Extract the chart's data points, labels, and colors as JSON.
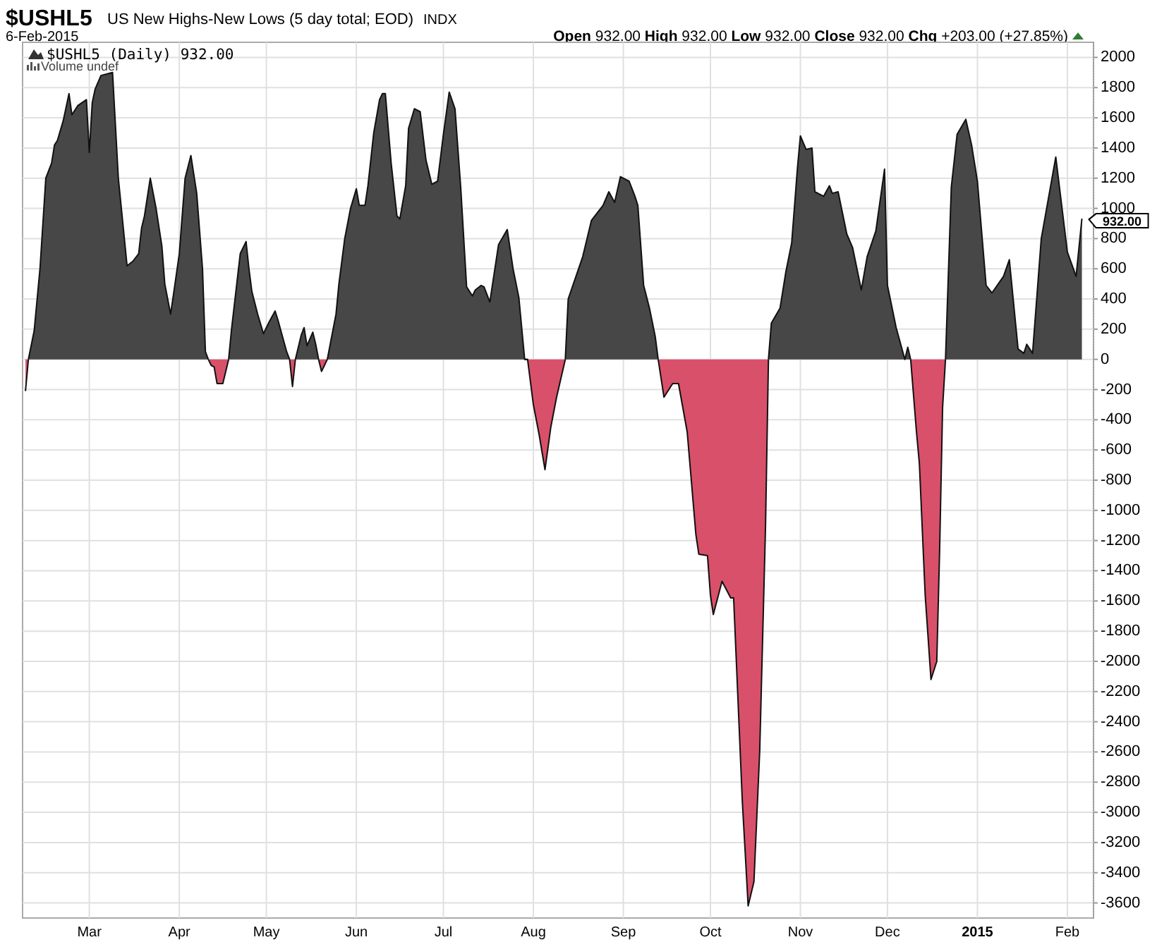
{
  "chart_data": {
    "type": "area",
    "title": "$USHL5",
    "subtitle": "US New Highs-New Lows (5 day total; EOD)",
    "annotations": [
      "INDX",
      "6-Feb-2015",
      "Open 932.00 High 932.00 Low 932.00 Close 932.00 Chg +203.00 (+27.85%)",
      "$USHL5 (Daily) 932.00",
      "Volume undef",
      {
        "text": "932.00",
        "x": "2015-02-06",
        "y": 932
      }
    ],
    "x": [
      "2014-02-07",
      "2014-02-08",
      "2014-02-10",
      "2014-02-12",
      "2014-02-13",
      "2014-02-14",
      "2014-02-16",
      "2014-02-17",
      "2014-02-18",
      "2014-02-20",
      "2014-02-22",
      "2014-02-23",
      "2014-02-25",
      "2014-02-28",
      "2014-03-01",
      "2014-03-02",
      "2014-03-03",
      "2014-03-05",
      "2014-03-09",
      "2014-03-11",
      "2014-03-14",
      "2014-03-16",
      "2014-03-18",
      "2014-03-19",
      "2014-03-20",
      "2014-03-22",
      "2014-03-24",
      "2014-03-26",
      "2014-03-27",
      "2014-03-29",
      "2014-03-30",
      "2014-04-01",
      "2014-04-03",
      "2014-04-05",
      "2014-04-07",
      "2014-04-09",
      "2014-04-10",
      "2014-04-11",
      "2014-04-12",
      "2014-04-13",
      "2014-04-14",
      "2014-04-16",
      "2014-04-18",
      "2014-04-19",
      "2014-04-22",
      "2014-04-24",
      "2014-04-25",
      "2014-04-26",
      "2014-04-28",
      "2014-04-30",
      "2014-05-02",
      "2014-05-04",
      "2014-05-05",
      "2014-05-07",
      "2014-05-08",
      "2014-05-09",
      "2014-05-10",
      "2014-05-11",
      "2014-05-13",
      "2014-05-14",
      "2014-05-15",
      "2014-05-17",
      "2014-05-18",
      "2014-05-19",
      "2014-05-20",
      "2014-05-21",
      "2014-05-22",
      "2014-05-23",
      "2014-05-25",
      "2014-05-26",
      "2014-05-28",
      "2014-05-30",
      "2014-06-01",
      "2014-06-02",
      "2014-06-04",
      "2014-06-05",
      "2014-06-07",
      "2014-06-09",
      "2014-06-10",
      "2014-06-11",
      "2014-06-13",
      "2014-06-15",
      "2014-06-16",
      "2014-06-18",
      "2014-06-19",
      "2014-06-21",
      "2014-06-23",
      "2014-06-25",
      "2014-06-27",
      "2014-06-29",
      "2014-07-01",
      "2014-07-03",
      "2014-07-05",
      "2014-07-07",
      "2014-07-09",
      "2014-07-11",
      "2014-07-12",
      "2014-07-14",
      "2014-07-15",
      "2014-07-17",
      "2014-07-20",
      "2014-07-23",
      "2014-07-25",
      "2014-07-27",
      "2014-07-29",
      "2014-07-30",
      "2014-08-01",
      "2014-08-03",
      "2014-08-05",
      "2014-08-07",
      "2014-08-09",
      "2014-08-12",
      "2014-08-13",
      "2014-08-18",
      "2014-08-21",
      "2014-08-25",
      "2014-08-27",
      "2014-08-29",
      "2014-08-31",
      "2014-09-03",
      "2014-09-05",
      "2014-09-06",
      "2014-09-08",
      "2014-09-10",
      "2014-09-12",
      "2014-09-13",
      "2014-09-15",
      "2014-09-18",
      "2014-09-20",
      "2014-09-23",
      "2014-09-26",
      "2014-09-27",
      "2014-09-30",
      "2014-10-01",
      "2014-10-02",
      "2014-10-05",
      "2014-10-08",
      "2014-10-09",
      "2014-10-12",
      "2014-10-13",
      "2014-10-14",
      "2014-10-16",
      "2014-10-18",
      "2014-10-20",
      "2014-10-21",
      "2014-10-22",
      "2014-10-25",
      "2014-10-27",
      "2014-10-29",
      "2014-10-31",
      "2014-11-01",
      "2014-11-03",
      "2014-11-05",
      "2014-11-06",
      "2014-11-09",
      "2014-11-11",
      "2014-11-12",
      "2014-11-14",
      "2014-11-17",
      "2014-11-19",
      "2014-11-22",
      "2014-11-24",
      "2014-11-27",
      "2014-11-30",
      "2014-12-01",
      "2014-12-04",
      "2014-12-07",
      "2014-12-08",
      "2014-12-09",
      "2014-12-11",
      "2014-12-12",
      "2014-12-14",
      "2014-12-16",
      "2014-12-18",
      "2014-12-19",
      "2014-12-20",
      "2014-12-21",
      "2014-12-23",
      "2014-12-25",
      "2014-12-28",
      "2014-12-30",
      "2015-01-01",
      "2015-01-04",
      "2015-01-06",
      "2015-01-10",
      "2015-01-12",
      "2015-01-15",
      "2015-01-17",
      "2015-01-18",
      "2015-01-20",
      "2015-01-23",
      "2015-01-28",
      "2015-02-01",
      "2015-02-04",
      "2015-02-06"
    ],
    "series": [
      {
        "color": "#474747",
        "values": [
          null,
          0,
          190,
          600,
          900,
          1200,
          1300,
          1420,
          1450,
          1580,
          1760,
          1620,
          1680,
          1720,
          1370,
          1700,
          1790,
          1880,
          1900,
          1200,
          620,
          650,
          700,
          870,
          950,
          1200,
          1000,
          750,
          500,
          300,
          430,
          700,
          1200,
          1350,
          1100,
          600,
          50,
          0,
          null,
          null,
          null,
          null,
          0,
          200,
          700,
          780,
          600,
          450,
          300,
          170,
          250,
          320,
          260,
          120,
          50,
          0,
          null,
          0,
          160,
          210,
          90,
          180,
          100,
          0,
          null,
          null,
          0,
          100,
          300,
          500,
          800,
          1000,
          1130,
          1020,
          1020,
          1150,
          1500,
          1720,
          1760,
          1760,
          1300,
          950,
          930,
          1150,
          1530,
          1660,
          1640,
          1320,
          1160,
          1180,
          1490,
          1770,
          1660,
          1130,
          480,
          420,
          460,
          490,
          480,
          380,
          760,
          860,
          600,
          410,
          0,
          0,
          null,
          null,
          null,
          null,
          null,
          0,
          400,
          680,
          920,
          1020,
          1110,
          1040,
          1210,
          1180,
          1080,
          1020,
          490,
          340,
          150,
          0,
          null,
          null,
          null,
          null,
          null,
          null,
          null,
          null,
          null,
          null,
          null,
          null,
          null,
          null,
          null,
          null,
          null,
          null,
          0,
          240,
          340,
          580,
          770,
          1270,
          1480,
          1390,
          1400,
          1110,
          1080,
          1150,
          1100,
          1110,
          830,
          740,
          460,
          680,
          850,
          1260,
          490,
          210,
          0,
          80,
          0,
          null,
          null,
          null,
          null,
          null,
          null,
          null,
          0,
          1140,
          1490,
          1590,
          1420,
          1180,
          490,
          440,
          550,
          660,
          70,
          40,
          100,
          40,
          800,
          1340,
          710,
          550,
          932
        ]
      },
      {
        "color": "#d9506a",
        "values": [
          -210,
          0,
          null,
          null,
          null,
          null,
          null,
          null,
          null,
          null,
          null,
          null,
          null,
          null,
          null,
          null,
          null,
          null,
          null,
          null,
          null,
          null,
          null,
          null,
          null,
          null,
          null,
          null,
          null,
          null,
          null,
          null,
          null,
          null,
          null,
          null,
          null,
          0,
          -40,
          -50,
          -160,
          -160,
          0,
          null,
          null,
          null,
          null,
          null,
          null,
          null,
          null,
          null,
          null,
          null,
          null,
          0,
          -180,
          0,
          null,
          null,
          null,
          null,
          null,
          0,
          -80,
          -40,
          0,
          null,
          null,
          null,
          null,
          null,
          null,
          null,
          null,
          null,
          null,
          null,
          null,
          null,
          null,
          null,
          null,
          null,
          null,
          null,
          null,
          null,
          null,
          null,
          null,
          null,
          null,
          null,
          null,
          null,
          null,
          null,
          null,
          null,
          null,
          null,
          null,
          null,
          0,
          0,
          -300,
          -500,
          -730,
          -450,
          -250,
          0,
          null,
          null,
          null,
          null,
          null,
          null,
          null,
          null,
          null,
          null,
          null,
          null,
          null,
          0,
          -250,
          -160,
          -160,
          -480,
          -1160,
          -1290,
          -1300,
          -1560,
          -1690,
          -1470,
          -1580,
          -1580,
          -2930,
          -3270,
          -3620,
          -3460,
          -2590,
          -1100,
          0,
          null,
          null,
          null,
          null,
          null,
          null,
          null,
          null,
          null,
          null,
          null,
          null,
          null,
          null,
          null,
          null,
          null,
          null,
          null,
          null,
          null,
          null,
          null,
          0,
          -480,
          -690,
          -1560,
          -2120,
          -2000,
          -1250,
          -320,
          0,
          null,
          null,
          null,
          null,
          null,
          null,
          null,
          null,
          null,
          null,
          null,
          null,
          null,
          null,
          null,
          null,
          null,
          null
        ]
      }
    ],
    "xlim": [
      "2014-02-06",
      "2015-02-10"
    ],
    "xticks": [
      {
        "value": "2014-03-01",
        "label": "Mar"
      },
      {
        "value": "2014-04-01",
        "label": "Apr"
      },
      {
        "value": "2014-05-01",
        "label": "May"
      },
      {
        "value": "2014-06-01",
        "label": "Jun"
      },
      {
        "value": "2014-07-01",
        "label": "Jul"
      },
      {
        "value": "2014-08-01",
        "label": "Aug"
      },
      {
        "value": "2014-09-01",
        "label": "Sep"
      },
      {
        "value": "2014-10-01",
        "label": "Oct"
      },
      {
        "value": "2014-11-01",
        "label": "Nov"
      },
      {
        "value": "2014-12-01",
        "label": "Dec"
      },
      {
        "value": "2015-01-01",
        "label": "2015"
      },
      {
        "value": "2015-02-01",
        "label": "Feb"
      }
    ],
    "ylim": [
      -3700,
      2100
    ],
    "yticks": [
      2000,
      1800,
      1600,
      1400,
      1200,
      1000,
      800,
      600,
      400,
      200,
      0,
      -200,
      -400,
      -600,
      -800,
      -1000,
      -1200,
      -1400,
      -1600,
      -1800,
      -2000,
      -2200,
      -2400,
      -2600,
      -2800,
      -3000,
      -3200,
      -3400,
      -3600
    ],
    "grid": true
  }
}
